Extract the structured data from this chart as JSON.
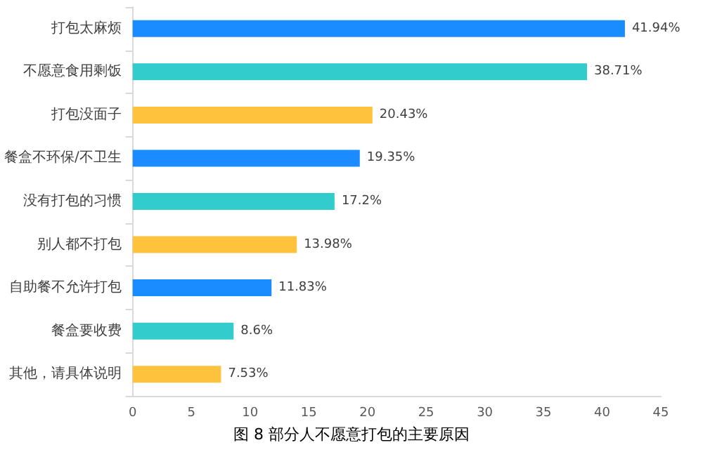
{
  "chart_data": {
    "type": "bar",
    "orientation": "horizontal",
    "title": "图 8 部分人不愿意打包的主要原因",
    "categories": [
      "打包太麻烦",
      "不愿意食用剩饭",
      "打包没面子",
      "餐盒不环保/不卫生",
      "没有打包的习惯",
      "别人都不打包",
      "自助餐不允许打包",
      "餐盒要收费",
      "其他，请具体说明"
    ],
    "values": [
      41.94,
      38.71,
      20.43,
      19.35,
      17.2,
      13.98,
      11.83,
      8.6,
      7.53
    ],
    "colors": [
      "#1a8cff",
      "#33cccc",
      "#ffc23d",
      "#1a8cff",
      "#33cccc",
      "#ffc23d",
      "#1a8cff",
      "#33cccc",
      "#ffc23d"
    ],
    "value_labels": [
      "41.94%",
      "38.71%",
      "20.43%",
      "19.35%",
      "17.2%",
      "13.98%",
      "11.83%",
      "8.6%",
      "7.53%"
    ],
    "xlim": [
      0,
      45
    ],
    "xticks": [
      0,
      5,
      10,
      15,
      20,
      25,
      30,
      35,
      40,
      45
    ],
    "grid": false
  }
}
